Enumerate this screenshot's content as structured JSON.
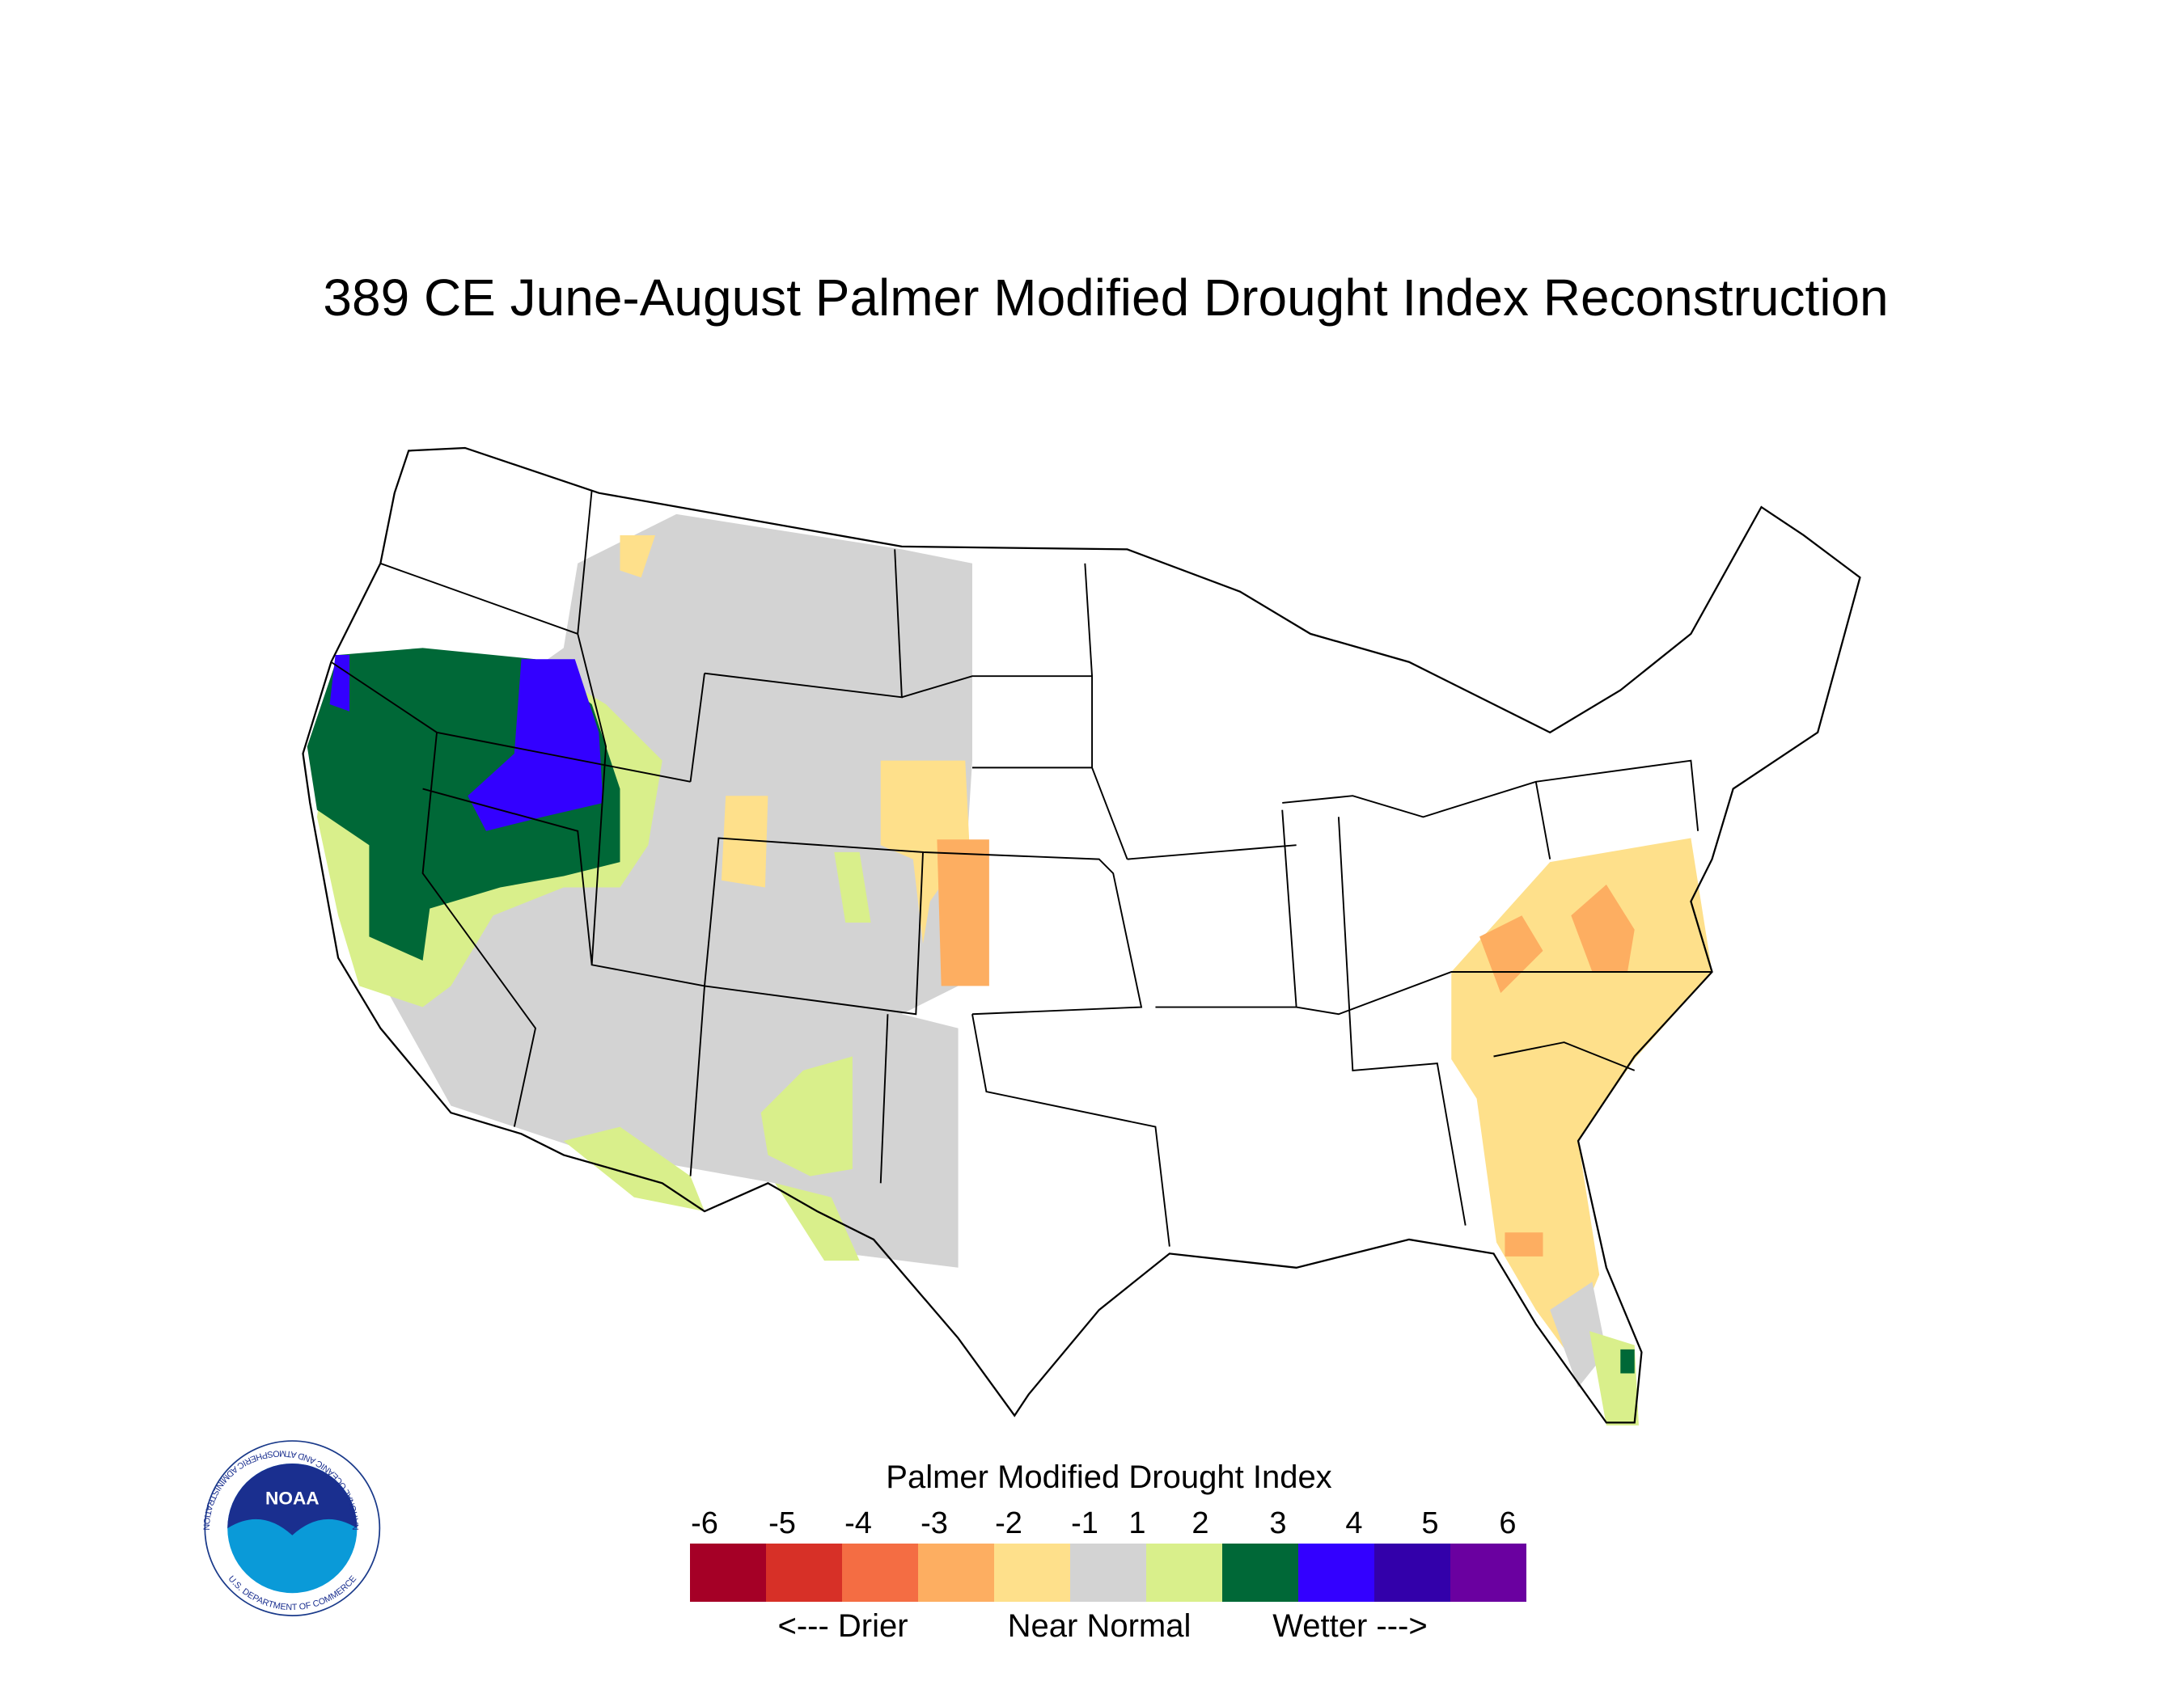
{
  "title": "389 CE  June-August  Palmer Modified Drought Index Reconstruction",
  "legend": {
    "title": "Palmer Modified Drought Index",
    "ticks": [
      -6,
      -5,
      -4,
      -3,
      -2,
      -1,
      1,
      2,
      3,
      4,
      5,
      6
    ],
    "colors": [
      "#a50026",
      "#d73027",
      "#f46d43",
      "#fdae61",
      "#fee08b",
      "#d3d3d3",
      "#d9ef8b",
      "#006837",
      "#3300ff",
      "#3300aa",
      "#6a00a0"
    ],
    "labels": [
      "<--- Drier",
      "Near Normal",
      "Wetter --->"
    ]
  },
  "logo": {
    "name": "NOAA",
    "ring_top": "NATIONAL OCEANIC AND ATMOSPHERIC ADMINISTRATION",
    "ring_bottom": "U.S. DEPARTMENT OF COMMERCE"
  }
}
